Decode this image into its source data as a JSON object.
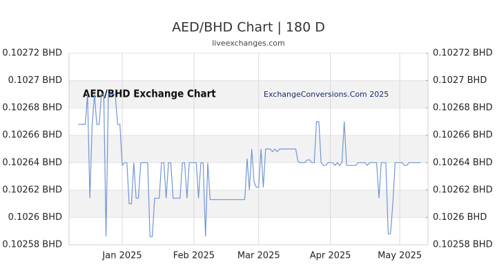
{
  "chart_data": {
    "type": "line",
    "title": "AED/BHD Chart | 180 D",
    "subtitle": "liveexchanges.com",
    "annotations": [
      "AED/BHD Exchange Chart",
      "ExchangeConversions.Com 2025"
    ],
    "color": "#6f95d6",
    "values": [
      0.102668,
      0.102668,
      0.102668,
      0.102668,
      0.10269,
      0.102614,
      0.102668,
      0.10269,
      0.102668,
      0.102668,
      0.10269,
      0.10269,
      0.102586,
      0.10269,
      0.10269,
      0.10269,
      0.10269,
      0.102668,
      0.102668,
      0.102638,
      0.10264,
      0.10264,
      0.10261,
      0.10261,
      0.10264,
      0.102614,
      0.102614,
      0.10264,
      0.10264,
      0.10264,
      0.10264,
      0.102586,
      0.102586,
      0.102614,
      0.102614,
      0.102614,
      0.10264,
      0.10264,
      0.102614,
      0.10264,
      0.10264,
      0.102614,
      0.102614,
      0.102614,
      0.102614,
      0.10264,
      0.10264,
      0.102614,
      0.10264,
      0.10264,
      0.10264,
      0.10264,
      0.102614,
      0.10264,
      0.10264,
      0.102586,
      0.10264,
      0.102613,
      0.102613,
      0.102613,
      0.102613,
      0.102613,
      0.102613,
      0.102613,
      0.102613,
      0.102613,
      0.102613,
      0.102613,
      0.102613,
      0.102613,
      0.102613,
      0.102613,
      0.102613,
      0.102643,
      0.10262,
      0.10265,
      0.102626,
      0.102622,
      0.102622,
      0.10265,
      0.102622,
      0.10265,
      0.10265,
      0.10265,
      0.102648,
      0.10265,
      0.102648,
      0.10265,
      0.10265,
      0.10265,
      0.10265,
      0.10265,
      0.10265,
      0.10265,
      0.10265,
      0.102641,
      0.10264,
      0.10264,
      0.10264,
      0.102642,
      0.102642,
      0.10264,
      0.10264,
      0.10267,
      0.10267,
      0.10264,
      0.102638,
      0.102638,
      0.10264,
      0.10264,
      0.10264,
      0.102638,
      0.10264,
      0.102638,
      0.10264,
      0.10267,
      0.102638,
      0.102638,
      0.102638,
      0.102638,
      0.102638,
      0.10264,
      0.10264,
      0.10264,
      0.10264,
      0.102638,
      0.10264,
      0.10264,
      0.10264,
      0.10264,
      0.102614,
      0.10264,
      0.10264,
      0.10264,
      0.102588,
      0.102588,
      0.10261,
      0.10264,
      0.10264,
      0.10264,
      0.10264,
      0.102638,
      0.102638,
      0.10264,
      0.10264,
      0.10264,
      0.10264,
      0.10264,
      0.10264
    ],
    "xlim": [
      -4,
      151.2
    ],
    "xticks": [
      {
        "value": 19,
        "label": "Jan 2025"
      },
      {
        "value": 50,
        "label": "Feb 2025"
      },
      {
        "value": 78,
        "label": "Mar 2025"
      },
      {
        "value": 109,
        "label": "Apr 2025"
      },
      {
        "value": 139,
        "label": "May 2025"
      }
    ],
    "ylim": [
      0.10258,
      0.10272
    ],
    "yticks": [
      {
        "value": 0.10258,
        "label": "0.10258 BHD"
      },
      {
        "value": 0.1026,
        "label": "0.1026 BHD"
      },
      {
        "value": 0.10262,
        "label": "0.10262 BHD"
      },
      {
        "value": 0.10264,
        "label": "0.10264 BHD"
      },
      {
        "value": 0.10266,
        "label": "0.10266 BHD"
      },
      {
        "value": 0.10268,
        "label": "0.10268 BHD"
      },
      {
        "value": 0.1027,
        "label": "0.1027 BHD"
      },
      {
        "value": 0.10272,
        "label": "0.10272 BHD"
      }
    ],
    "grid": true
  }
}
